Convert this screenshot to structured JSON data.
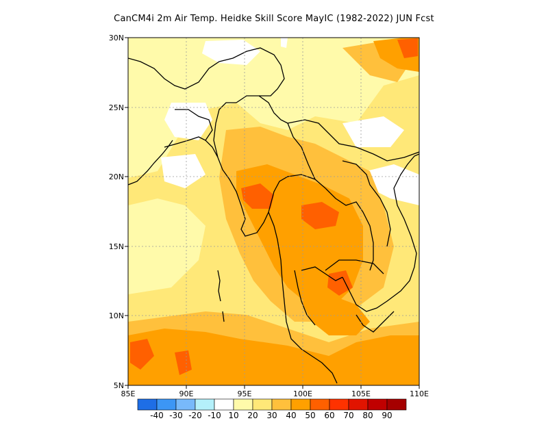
{
  "title": "CanCM4i 2m Air Temp. Heidke Skill Score MayIC (1982-2022) JUN Fcst",
  "map": {
    "lon_range": [
      85,
      110
    ],
    "lat_range": [
      5,
      30
    ],
    "x_ticks": [
      "85E",
      "90E",
      "95E",
      "100E",
      "105E",
      "110E"
    ],
    "y_ticks": [
      "5N",
      "10N",
      "15N",
      "20N",
      "25N",
      "30N"
    ],
    "gridlines": "dotted",
    "colors": {
      "frame": "#000000",
      "coast": "#000000",
      "grid": "#9a9a9a"
    }
  },
  "colorbar": {
    "levels": [
      "-40",
      "-30",
      "-20",
      "-10",
      "10",
      "20",
      "30",
      "40",
      "50",
      "60",
      "70",
      "80",
      "90"
    ],
    "colors": [
      "#1e6ee6",
      "#3c96f5",
      "#78b9fa",
      "#b4f0fa",
      "#ffffff",
      "#fffaaa",
      "#ffe878",
      "#ffc03c",
      "#ffa000",
      "#ff6000",
      "#ff3200",
      "#e11400",
      "#c00000",
      "#a50000"
    ]
  },
  "legend_note": "Field: Heidke skill score, shaded by contour level"
}
